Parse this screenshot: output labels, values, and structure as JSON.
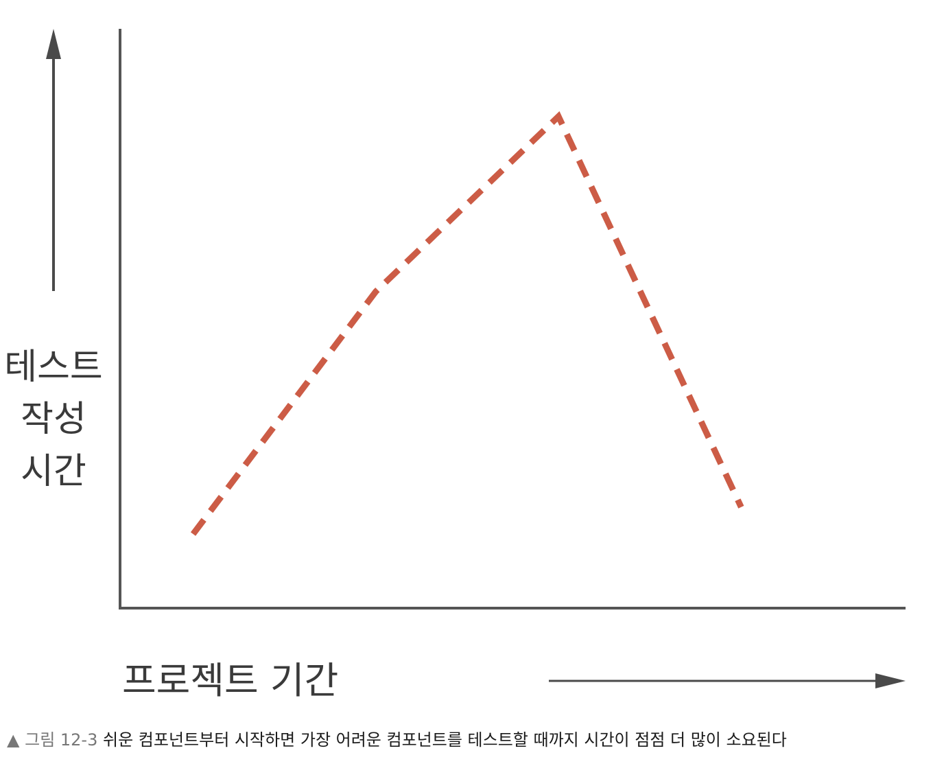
{
  "chart_data": {
    "type": "line",
    "title": "",
    "ylabel_lines": [
      "테스트",
      "작성",
      "시간"
    ],
    "xlabel": "프로젝트 기간",
    "x": [
      1,
      2,
      3,
      4
    ],
    "series": [
      {
        "values": [
          1.0,
          4.6,
          7.2,
          1.4
        ]
      }
    ],
    "xlim": [
      0.6,
      4.9
    ],
    "ylim": [
      -0.1,
      8.5
    ],
    "grid": false,
    "legend": "none",
    "line_color": "#cc5c46",
    "line_style": "dashed",
    "axis_color": "#555555"
  },
  "caption": {
    "marker": "▲",
    "label": "그림 12-3",
    "text": "쉬운 컴포넌트부터 시작하면 가장 어려운 컴포넌트를 테스트할 때까지 시간이 점점 더 많이 소요된다"
  }
}
